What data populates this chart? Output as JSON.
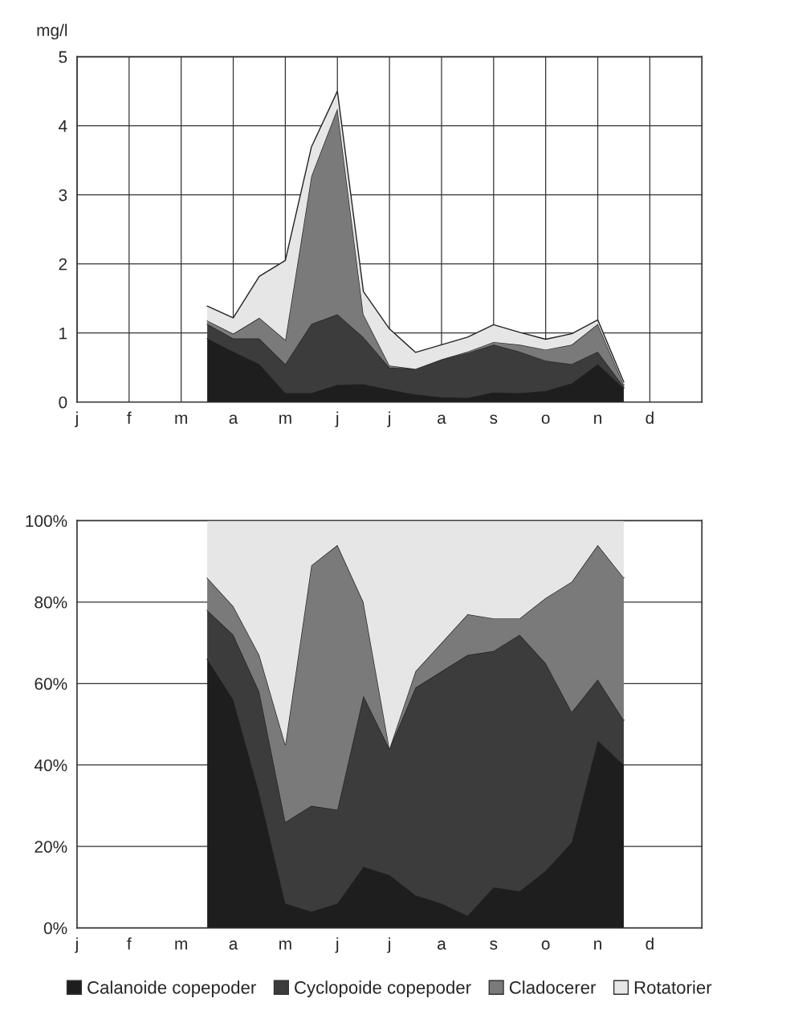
{
  "chart_data": [
    {
      "type": "area",
      "stacked": true,
      "ylabel": "mg/l",
      "categories": [
        "j",
        null,
        "f",
        null,
        "m",
        null,
        "a",
        null,
        "m",
        null,
        "j",
        null,
        "j",
        null,
        "a",
        null,
        "s",
        null,
        "o",
        null,
        "n",
        null,
        "d",
        null
      ],
      "ylim": [
        0,
        5
      ],
      "yticks": [
        0,
        1,
        2,
        3,
        4,
        5
      ],
      "grid": true,
      "series": [
        {
          "color": "#1e1e1e",
          "values": [
            null,
            null,
            null,
            null,
            null,
            0.92,
            0.73,
            0.55,
            0.13,
            0.13,
            0.25,
            0.26,
            0.18,
            0.11,
            0.07,
            0.06,
            0.14,
            0.13,
            0.16,
            0.27,
            0.55,
            0.2,
            null,
            null
          ]
        },
        {
          "color": "#3c3c3c",
          "values": [
            null,
            null,
            null,
            null,
            null,
            0.21,
            0.19,
            0.37,
            0.42,
            1.0,
            1.02,
            0.68,
            0.32,
            0.37,
            0.55,
            0.65,
            0.69,
            0.6,
            0.44,
            0.28,
            0.18,
            0.02,
            null,
            null
          ]
        },
        {
          "color": "#7a7a7a",
          "values": [
            null,
            null,
            null,
            null,
            null,
            0.05,
            0.07,
            0.3,
            0.35,
            2.14,
            2.98,
            0.33,
            0.03,
            0.0,
            0.0,
            0.02,
            0.04,
            0.1,
            0.16,
            0.28,
            0.4,
            0.03,
            null,
            null
          ]
        },
        {
          "color": "#e6e6e6",
          "values": [
            null,
            null,
            null,
            null,
            null,
            0.21,
            0.23,
            0.6,
            1.15,
            0.42,
            0.25,
            0.33,
            0.53,
            0.24,
            0.21,
            0.21,
            0.25,
            0.18,
            0.15,
            0.16,
            0.06,
            0.04,
            null,
            null
          ]
        }
      ]
    },
    {
      "type": "area",
      "stacked": true,
      "categories": [
        "j",
        null,
        "f",
        null,
        "m",
        null,
        "a",
        null,
        "m",
        null,
        "j",
        null,
        "j",
        null,
        "a",
        null,
        "s",
        null,
        "o",
        null,
        "n",
        null,
        "d",
        null
      ],
      "ylim": [
        0,
        100
      ],
      "yticks": [
        {
          "value": 0,
          "label": "0%"
        },
        {
          "value": 20,
          "label": "20%"
        },
        {
          "value": 40,
          "label": "40%"
        },
        {
          "value": 60,
          "label": "60%"
        },
        {
          "value": 80,
          "label": "80%"
        },
        {
          "value": 100,
          "label": "100%"
        }
      ],
      "grid": "y",
      "legend": "bottom",
      "series": [
        {
          "name": "Calanoide copepoder",
          "color": "#1e1e1e",
          "values": [
            null,
            null,
            null,
            null,
            null,
            66,
            56,
            33,
            6,
            4,
            6,
            15,
            13,
            8,
            6,
            3,
            10,
            9,
            14,
            21,
            46,
            40,
            null,
            null
          ]
        },
        {
          "name": "Cyclopoide copepoder",
          "color": "#3c3c3c",
          "values": [
            null,
            null,
            null,
            null,
            null,
            12,
            16,
            25,
            20,
            26,
            23,
            42,
            31,
            51,
            57,
            64,
            58,
            63,
            51,
            32,
            15,
            11,
            null,
            null
          ]
        },
        {
          "name": "Cladocerer",
          "color": "#7a7a7a",
          "values": [
            null,
            null,
            null,
            null,
            null,
            8,
            7,
            9,
            19,
            59,
            65,
            23,
            0,
            4,
            7,
            10,
            8,
            4,
            16,
            32,
            33,
            35,
            null,
            null
          ]
        },
        {
          "name": "Rotatorier",
          "color": "#e6e6e6",
          "values": [
            null,
            null,
            null,
            null,
            null,
            14,
            21,
            33,
            55,
            11,
            6,
            20,
            56,
            37,
            30,
            23,
            24,
            24,
            19,
            15,
            6,
            14,
            null,
            null
          ]
        }
      ]
    }
  ]
}
